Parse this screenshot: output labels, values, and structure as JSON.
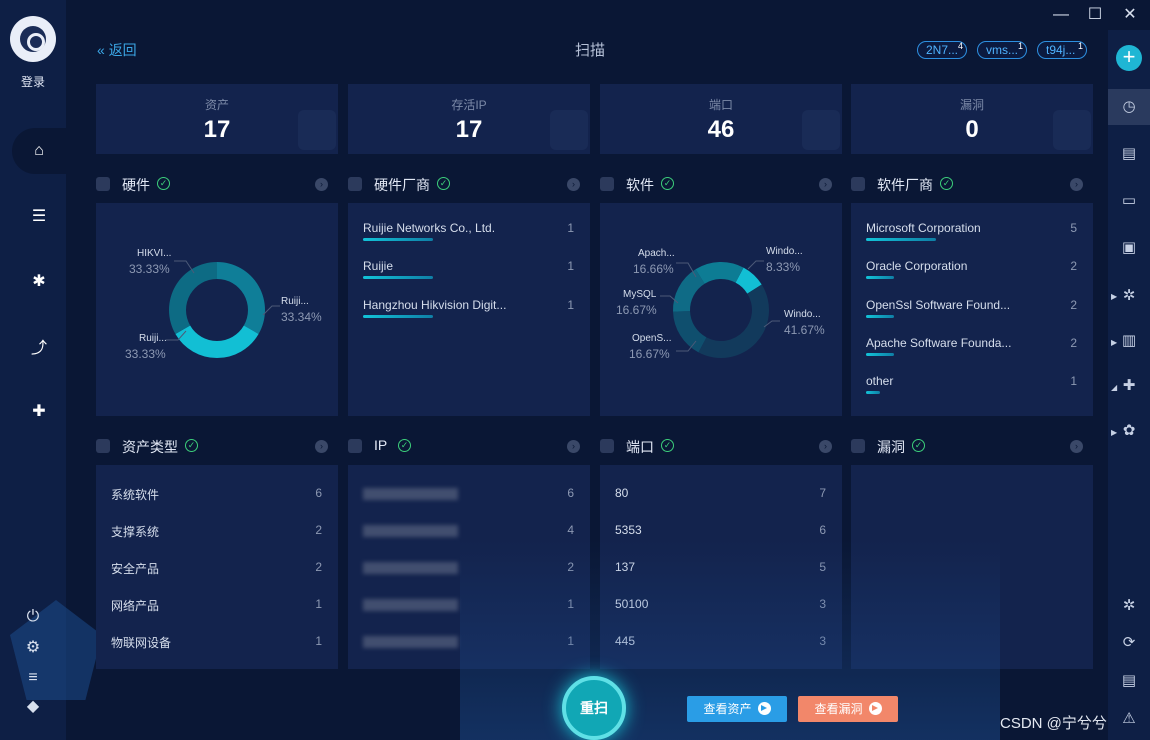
{
  "sidebar": {
    "login_label": "登录",
    "nav": [
      {
        "icon": "hat-icon",
        "color": "#2f6fe0"
      },
      {
        "icon": "server-icon",
        "color": "#2aa7e8"
      },
      {
        "icon": "bug-report-icon",
        "color": "#ef7b54"
      },
      {
        "icon": "trend-chart-icon",
        "color": "#3cbf6a"
      },
      {
        "icon": "puzzle-icon",
        "color": "#3cbfa0"
      }
    ]
  },
  "header": {
    "back_label": "返回",
    "title": "扫描",
    "tags": [
      {
        "label": "2N7...",
        "badge": "4"
      },
      {
        "label": "vms...",
        "badge": "1"
      },
      {
        "label": "t94j...",
        "badge": "1"
      }
    ]
  },
  "stats": [
    {
      "label": "资产",
      "value": "17"
    },
    {
      "label": "存活IP",
      "value": "17"
    },
    {
      "label": "端口",
      "value": "46"
    },
    {
      "label": "漏洞",
      "value": "0"
    }
  ],
  "sections": {
    "hardware": {
      "title": "硬件",
      "slices": [
        {
          "label": "HIKVI...",
          "pct": "33.33%",
          "value": 33.33
        },
        {
          "label": "Ruiji...",
          "pct": "33.34%",
          "value": 33.34
        },
        {
          "label": "Ruiji...",
          "pct": "33.33%",
          "value": 33.33
        }
      ]
    },
    "hardware_vendor": {
      "title": "硬件厂商",
      "rows": [
        {
          "name": "Ruijie Networks Co., Ltd.",
          "count": "1",
          "fraction": 1
        },
        {
          "name": "Ruijie",
          "count": "1",
          "fraction": 1
        },
        {
          "name": "Hangzhou Hikvision Digit...",
          "count": "1",
          "fraction": 1
        }
      ]
    },
    "software": {
      "title": "软件",
      "slices": [
        {
          "label": "Windo...",
          "pct": "8.33%",
          "value": 8.33
        },
        {
          "label": "Windo...",
          "pct": "41.67%",
          "value": 41.67
        },
        {
          "label": "OpenS...",
          "pct": "16.67%",
          "value": 16.67
        },
        {
          "label": "MySQL",
          "pct": "16.67%",
          "value": 16.67
        },
        {
          "label": "Apach...",
          "pct": "16.66%",
          "value": 16.66
        }
      ]
    },
    "software_vendor": {
      "title": "软件厂商",
      "rows": [
        {
          "name": "Microsoft Corporation",
          "count": "5",
          "fraction": 1
        },
        {
          "name": "Oracle Corporation",
          "count": "2",
          "fraction": 0.4
        },
        {
          "name": "OpenSsl Software Found...",
          "count": "2",
          "fraction": 0.4
        },
        {
          "name": "Apache Software Founda...",
          "count": "2",
          "fraction": 0.4
        },
        {
          "name": "other",
          "count": "1",
          "fraction": 0.2
        }
      ]
    },
    "asset_type": {
      "title": "资产类型",
      "rows": [
        {
          "name": "系统软件",
          "count": "6"
        },
        {
          "name": "支撑系统",
          "count": "2"
        },
        {
          "name": "安全产品",
          "count": "2"
        },
        {
          "name": "网络产品",
          "count": "1"
        },
        {
          "name": "物联网设备",
          "count": "1"
        }
      ]
    },
    "ip": {
      "title": "IP",
      "rows": [
        {
          "count": "6"
        },
        {
          "count": "4"
        },
        {
          "count": "2"
        },
        {
          "count": "1"
        },
        {
          "count": "1"
        }
      ]
    },
    "port": {
      "title": "端口",
      "rows": [
        {
          "name": "80",
          "count": "7"
        },
        {
          "name": "5353",
          "count": "6"
        },
        {
          "name": "137",
          "count": "5"
        },
        {
          "name": "50100",
          "count": "3"
        },
        {
          "name": "445",
          "count": "3"
        }
      ]
    },
    "vuln": {
      "title": "漏洞"
    }
  },
  "actions": {
    "rescan": "重扫",
    "view_assets": "查看资产",
    "view_vulns": "查看漏洞"
  },
  "watermark": "CSDN @宁兮兮",
  "colors": {
    "accent": "#12c3d8",
    "donut_dark": "#0f6b86",
    "background": "#0a1735",
    "panel": "#13234d"
  }
}
